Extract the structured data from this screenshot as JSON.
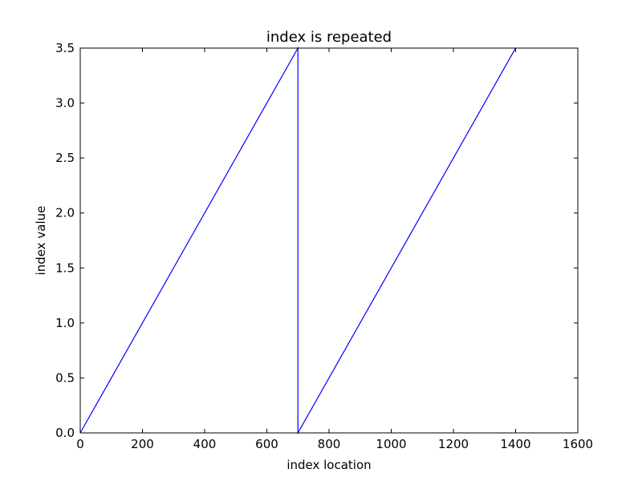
{
  "chart_data": {
    "type": "line",
    "title": "index is repeated",
    "xlabel": "index location",
    "ylabel": "index value",
    "xlim": [
      0,
      1600
    ],
    "ylim": [
      0,
      3.5
    ],
    "xticks": [
      0,
      200,
      400,
      600,
      800,
      1000,
      1200,
      1400,
      1600
    ],
    "xtick_labels": [
      "0",
      "200",
      "400",
      "600",
      "800",
      "1000",
      "1200",
      "1400",
      "1600"
    ],
    "yticks": [
      0,
      0.5,
      1.0,
      1.5,
      2.0,
      2.5,
      3.0,
      3.5
    ],
    "ytick_labels": [
      "0.0",
      "0.5",
      "1.0",
      "1.5",
      "2.0",
      "2.5",
      "3.0",
      "3.5"
    ],
    "grid": false,
    "series": [
      {
        "color": "#0000ff",
        "x": [
          0,
          700,
          700,
          1400
        ],
        "y": [
          0,
          3.5,
          0,
          3.5
        ]
      }
    ]
  }
}
